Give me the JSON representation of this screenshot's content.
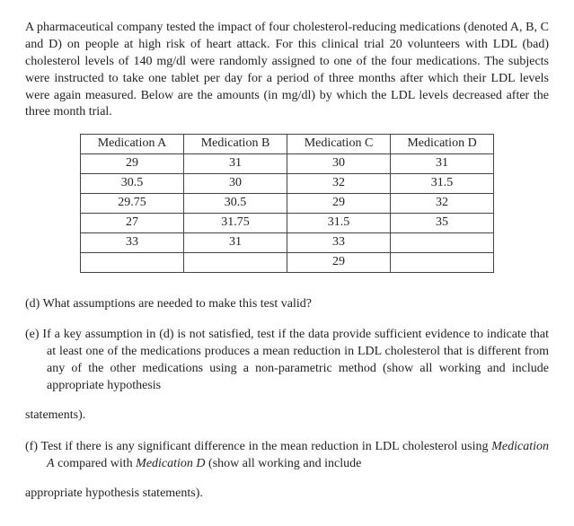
{
  "intro": "A pharmaceutical company tested the impact of four cholesterol-reducing medications (denoted A, B, C and D) on people at high risk of heart attack. For this clinical trial 20 volunteers with LDL (bad) cholesterol levels of 140 mg/dl were randomly assigned to one of the four medications. The subjects were instructed to take one tablet per day for a period of three months after which their LDL levels were again measured. Below are the amounts (in mg/dl) by which the LDL levels decreased after the three month trial.",
  "table": {
    "columns": [
      "Medication A",
      "Medication B",
      "Medication C",
      "Medication D"
    ],
    "rows": [
      [
        "29",
        "31",
        "30",
        "31"
      ],
      [
        "30.5",
        "30",
        "32",
        "31.5"
      ],
      [
        "29.75",
        "30.5",
        "29",
        "32"
      ],
      [
        "27",
        "31.75",
        "31.5",
        "35"
      ],
      [
        "33",
        "31",
        "33",
        ""
      ],
      [
        "",
        "",
        "29",
        ""
      ]
    ],
    "border_color": "#444444",
    "cell_fontsize": 14,
    "text_align": "center"
  },
  "questions": {
    "d": {
      "letter": "(d)",
      "text": "What assumptions are needed to make this test valid?"
    },
    "e": {
      "letter": "(e)",
      "text": "If a key assumption in (d) is not satisfied, test if the data provide sufficient evidence to indicate that at least one of the medications produces a mean reduction in LDL cholesterol that is different from any of the other medications using a non-parametric method (show all working and include appropriate hypothesis",
      "tail": "statements)."
    },
    "f": {
      "letter": "(f)",
      "pre": "Test if there is any significant difference in the mean reduction in LDL cholesterol using ",
      "italic1": "Medication A",
      "mid": " compared with ",
      "italic2": "Medication D",
      "post": " (show all working and include",
      "tail": "appropriate hypothesis statements)."
    }
  },
  "colors": {
    "background": "#ffffff",
    "text": "#222222"
  }
}
